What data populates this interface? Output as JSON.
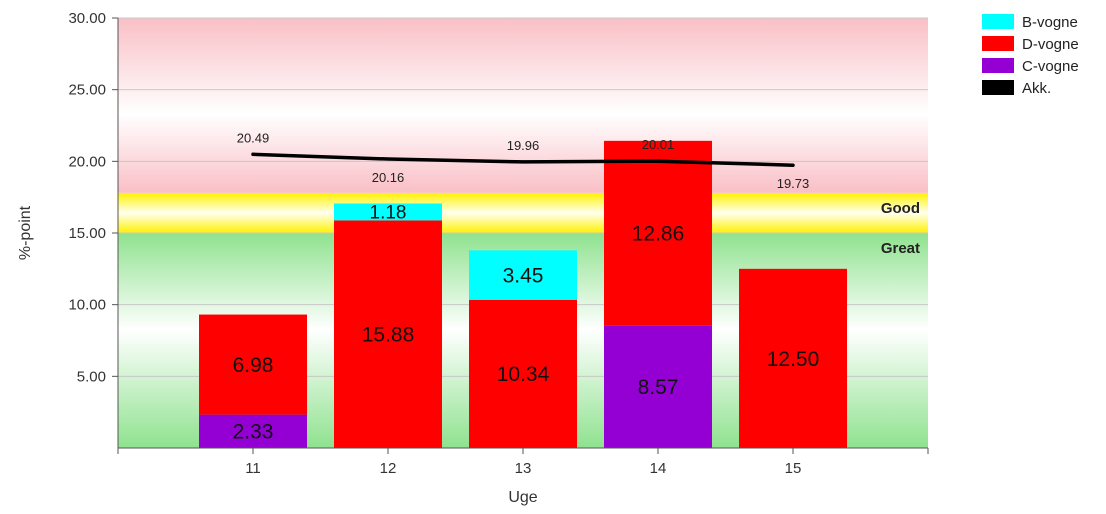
{
  "chart_data": {
    "type": "bar",
    "stacked": true,
    "categories": [
      "11",
      "12",
      "13",
      "14",
      "15"
    ],
    "series": [
      {
        "name": "C-vogne",
        "color": "#9400D3",
        "values": [
          2.33,
          null,
          null,
          8.57,
          null
        ]
      },
      {
        "name": "D-vogne",
        "color": "#FF0000",
        "values": [
          6.98,
          15.88,
          10.34,
          12.86,
          12.5
        ]
      },
      {
        "name": "B-vogne",
        "color": "#00FFFF",
        "values": [
          null,
          1.18,
          3.45,
          null,
          null
        ]
      }
    ],
    "line_series": {
      "name": "Akk.",
      "color": "#000000",
      "values": [
        20.49,
        20.16,
        19.96,
        20.01,
        19.73
      ],
      "labels": [
        "20.49",
        "20.16",
        "19.96",
        "20.01",
        "19.73"
      ]
    },
    "legend_order": [
      "B-vogne",
      "D-vogne",
      "C-vogne",
      "Akk."
    ],
    "legend_position": "top-right",
    "xlabel": "Uge",
    "ylabel": "%-point",
    "ylim": [
      0,
      30
    ],
    "yticks": [
      "5.00",
      "10.00",
      "15.00",
      "20.00",
      "25.00",
      "30.00"
    ],
    "bands": [
      {
        "label": "Good",
        "from": 15,
        "to": 17.8,
        "color": "#FFFF00"
      },
      {
        "label": "Great",
        "from": 0,
        "to": 15,
        "color": "#2ECC2E"
      },
      {
        "label": "",
        "from": 17.8,
        "to": 30,
        "color": "#FF8080"
      }
    ],
    "grid": true
  }
}
